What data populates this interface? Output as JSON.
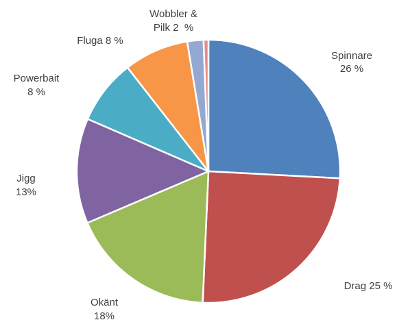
{
  "chart_data": {
    "type": "pie",
    "title": "",
    "start_angle_deg": 0,
    "direction": "clockwise",
    "slices": [
      {
        "label_lines": [
          "Spinnare",
          "26 %"
        ],
        "value": 26,
        "color": "#4F81BD"
      },
      {
        "label_lines": [
          "Drag 25 %"
        ],
        "value": 25,
        "color": "#C0504D"
      },
      {
        "label_lines": [
          "Okänt",
          "18%"
        ],
        "value": 18,
        "color": "#9BBB59"
      },
      {
        "label_lines": [
          "Jigg",
          "13%"
        ],
        "value": 13,
        "color": "#8064A2"
      },
      {
        "label_lines": [
          "Powerbait",
          "8 %"
        ],
        "value": 8,
        "color": "#4BACC6"
      },
      {
        "label_lines": [
          "Fluga 8 %"
        ],
        "value": 8,
        "color": "#F79646"
      },
      {
        "label_lines": [
          "Wobbler &",
          "Pilk 2  %"
        ],
        "value": 2,
        "color": "#94A9D2",
        "label_for_group": [
          6,
          7
        ]
      },
      {
        "label_lines": [],
        "value": 0.6,
        "color": "#E48C8A"
      }
    ]
  }
}
